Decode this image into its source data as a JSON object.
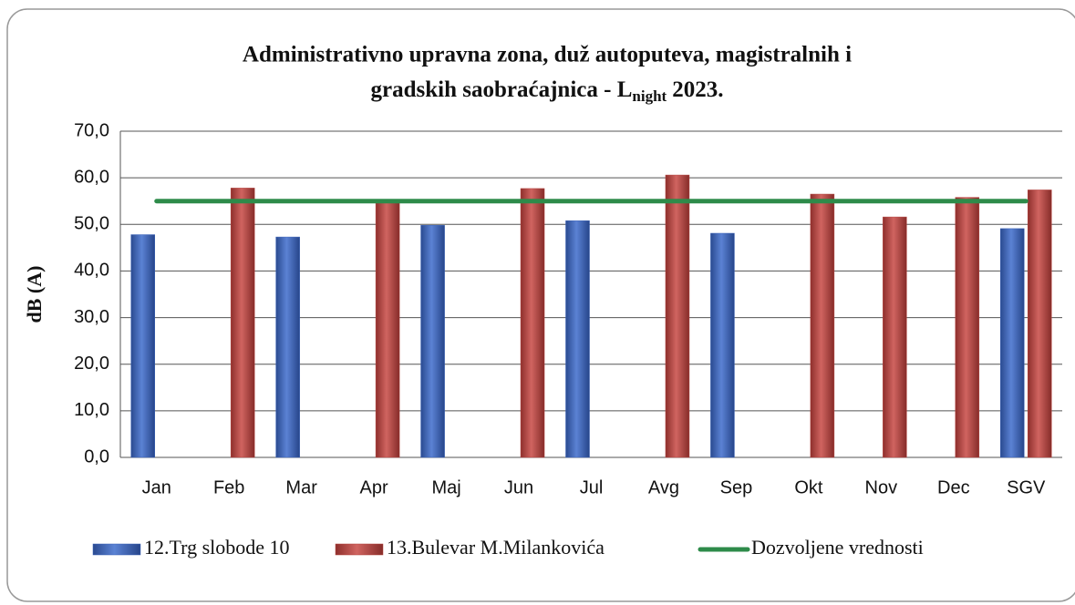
{
  "chart_data": {
    "type": "bar",
    "title_lines": [
      "Administrativno upravna zona, duž autoputeva, magistralnih i",
      "gradskih saobraćajnica - L"
    ],
    "title_subscript": "night",
    "title_suffix": "2023.",
    "y_label": "dB (A)",
    "categories": [
      "Jan",
      "Feb",
      "Mar",
      "Apr",
      "Maj",
      "Jun",
      "Jul",
      "Avg",
      "Sep",
      "Okt",
      "Nov",
      "Dec",
      "SGV"
    ],
    "series": [
      {
        "name": "12.Trg slobode 10",
        "color": "#3a62b8",
        "type": "bar",
        "values": [
          47.8,
          null,
          47.3,
          null,
          49.8,
          null,
          50.8,
          null,
          48.1,
          null,
          null,
          null,
          49.1
        ]
      },
      {
        "name": "13.Bulevar M.Milankovića",
        "color": "#b4433f",
        "type": "bar",
        "values": [
          null,
          57.8,
          null,
          55.0,
          null,
          57.7,
          null,
          60.6,
          null,
          56.5,
          51.6,
          55.8,
          57.4
        ]
      },
      {
        "name": "Dozvoljene vrednosti",
        "color": "#2e8b4a",
        "type": "line",
        "values": [
          55,
          55,
          55,
          55,
          55,
          55,
          55,
          55,
          55,
          55,
          55,
          55,
          55
        ]
      }
    ],
    "ylim": [
      0,
      70
    ],
    "yticks": [
      {
        "value": 0,
        "label": "0,0"
      },
      {
        "value": 10,
        "label": "10,0"
      },
      {
        "value": 20,
        "label": "20,0"
      },
      {
        "value": 30,
        "label": "30,0"
      },
      {
        "value": 40,
        "label": "40,0"
      },
      {
        "value": 50,
        "label": "50,0"
      },
      {
        "value": 60,
        "label": "60,0"
      },
      {
        "value": 70,
        "label": "70,0"
      }
    ],
    "grid": true,
    "legend": "bottom"
  }
}
